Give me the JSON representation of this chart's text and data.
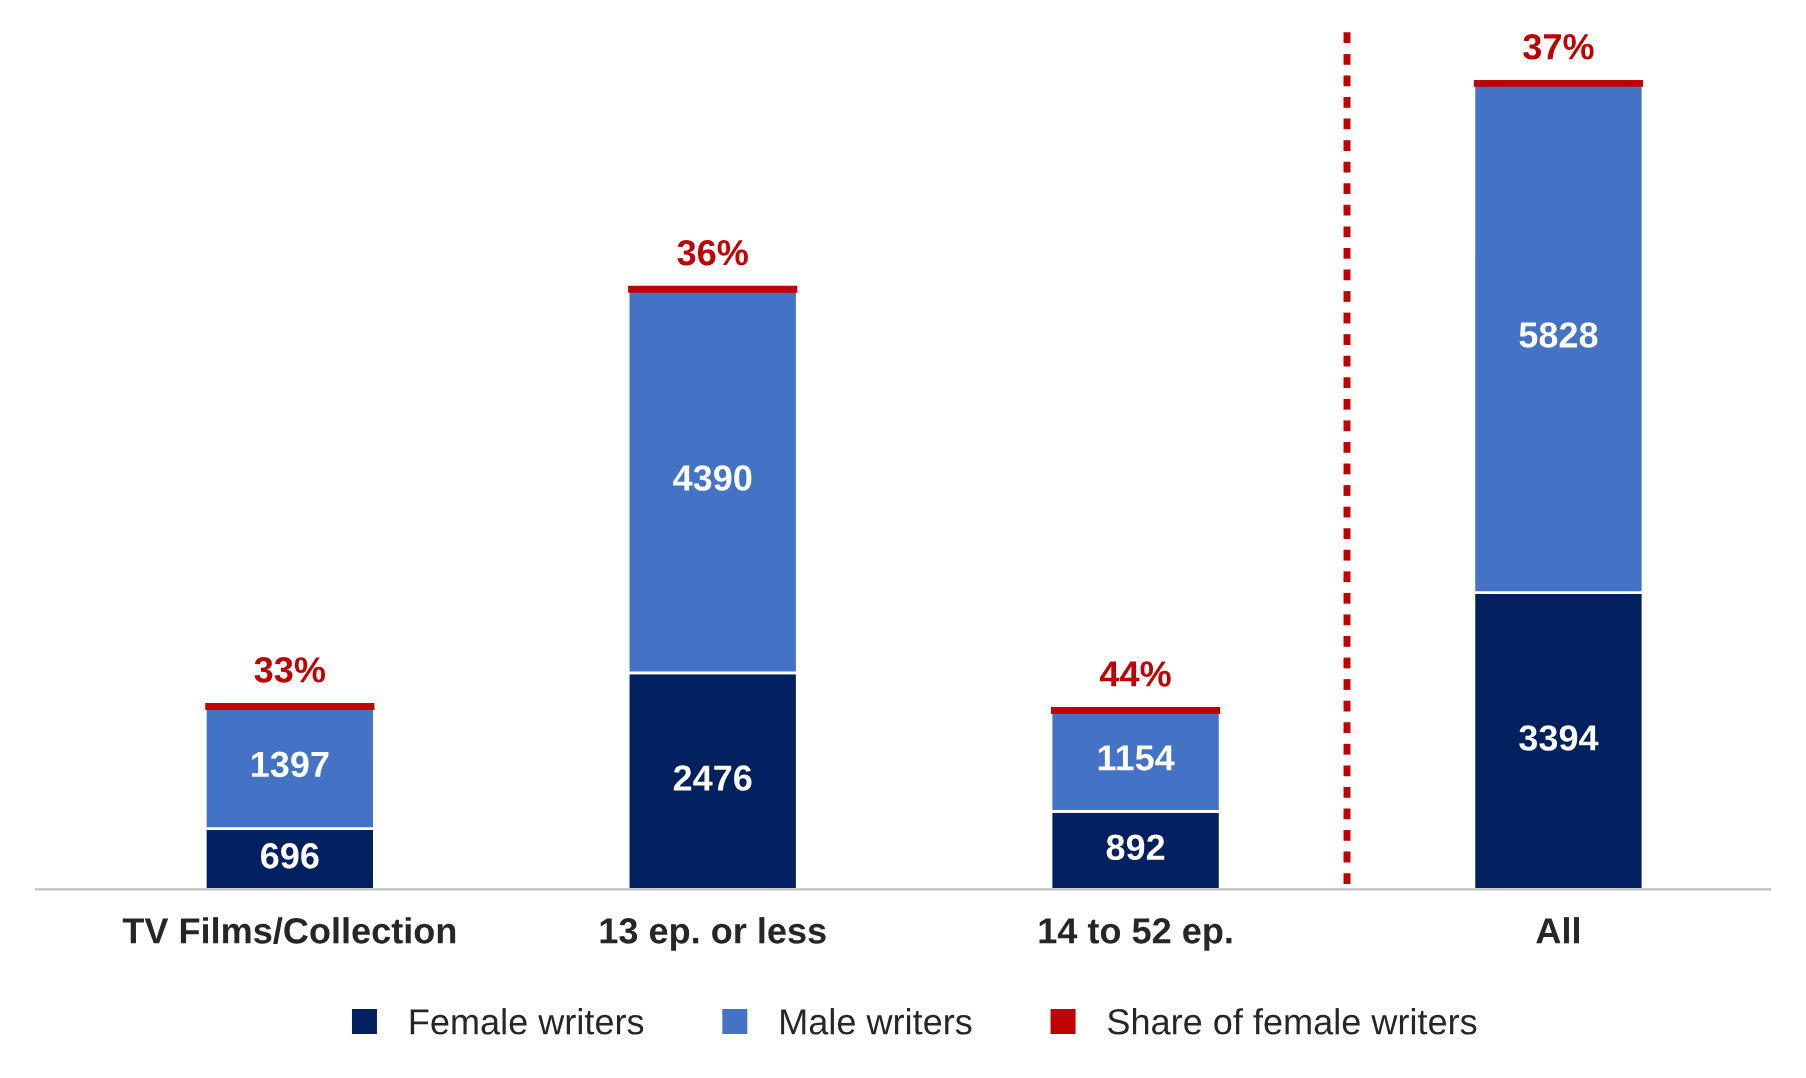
{
  "chart_data": {
    "type": "bar",
    "stacked": true,
    "data_labels": true,
    "categories": [
      "TV Films/Collection",
      "13 ep. or less",
      "14 to 52 ep.",
      "All"
    ],
    "series": [
      {
        "name": "Female writers",
        "color": "#002060",
        "values": [
          696,
          2476,
          892,
          3394
        ]
      },
      {
        "name": "Male writers",
        "color": "#4472c4",
        "values": [
          1397,
          4390,
          1154,
          5828
        ]
      },
      {
        "name": "Share of female writers",
        "color": "#c00000",
        "type": "line",
        "values": [
          null,
          null,
          null,
          null
        ]
      }
    ],
    "annotations": [
      {
        "text": "33%",
        "x": "TV Films/Collection",
        "y": 2093
      },
      {
        "text": "36%",
        "x": "13 ep. or less",
        "y": 6866
      },
      {
        "text": "44%",
        "x": "14 to 52 ep.",
        "y": 2046
      },
      {
        "text": "37%",
        "x": "All",
        "y": 9222
      }
    ],
    "legend": "bottom",
    "grid": false
  }
}
